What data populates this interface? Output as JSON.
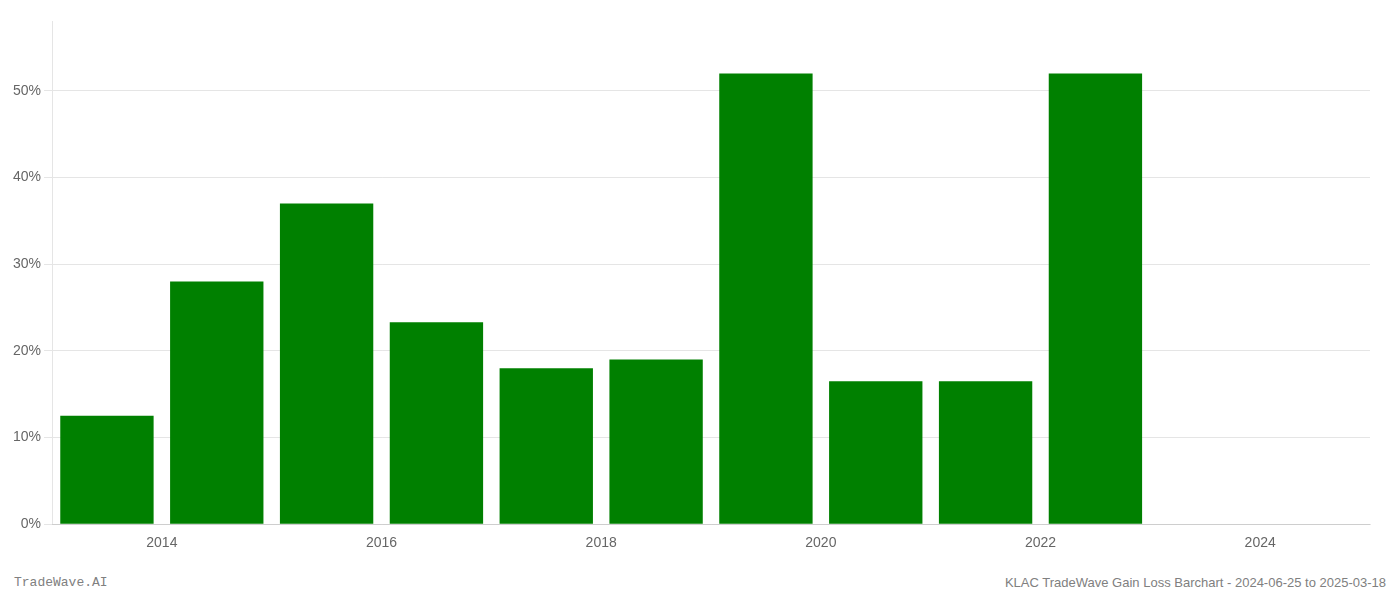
{
  "chart_data": {
    "type": "bar",
    "x": [
      2013.5,
      2014.5,
      2015.5,
      2016.5,
      2017.5,
      2018.5,
      2019.5,
      2020.5,
      2021.5,
      2022.5
    ],
    "values": [
      12.5,
      28.0,
      37.0,
      23.3,
      18.0,
      19.0,
      52.0,
      16.5,
      16.5,
      52.0
    ],
    "color": "#008000",
    "xlim": [
      2013.0,
      2025.0
    ],
    "xticks": [
      2014,
      2016,
      2018,
      2020,
      2022,
      2024
    ],
    "ylim": [
      0,
      58
    ],
    "yticks": [
      {
        "value": 0,
        "label": "0%"
      },
      {
        "value": 10,
        "label": "10%"
      },
      {
        "value": 20,
        "label": "20%"
      },
      {
        "value": 30,
        "label": "30%"
      },
      {
        "value": 40,
        "label": "40%"
      },
      {
        "value": 50,
        "label": "50%"
      }
    ],
    "grid": true,
    "annotations": [
      "TradeWave.AI",
      "KLAC TradeWave Gain Loss Barchart - 2024-06-25 to 2025-03-18"
    ]
  }
}
